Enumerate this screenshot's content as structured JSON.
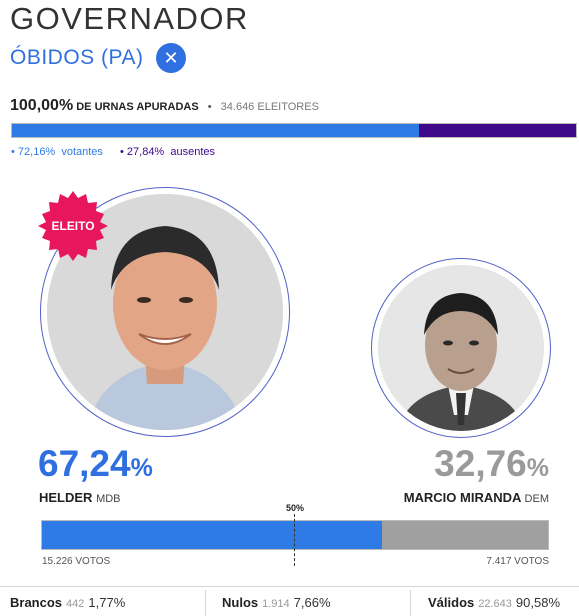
{
  "header": {
    "title": "GOVERNADOR",
    "region": "ÓBIDOS (PA)",
    "close_icon": "close-icon",
    "close_glyph": "✕"
  },
  "apuracao": {
    "percent": "100,00%",
    "label": "de urnas apuradas",
    "bullet": "•",
    "electors": "34.646",
    "electors_label": "eleitores"
  },
  "turnout": {
    "votantes_fraction": 0.7216,
    "votantes_text": "• 72,16%",
    "votantes_label": "votantes",
    "ausentes_text": "• 27,84%",
    "ausentes_label": "ausentes",
    "colors": {
      "votantes": "#2f7be6",
      "ausentes": "#3e0a8a"
    }
  },
  "candidates": [
    {
      "name": "HELDER",
      "party": "MDB",
      "percent_number": "67,24",
      "percent_symbol": "%",
      "votes": "15.226 votos",
      "elected": true,
      "elected_label": "ELEITO",
      "color": "#2f7be6"
    },
    {
      "name": "MARCIO MIRANDA",
      "party": "DEM",
      "percent_number": "32,76",
      "percent_symbol": "%",
      "votes": "7.417 votos",
      "elected": false,
      "color": "#a0a0a0"
    }
  ],
  "vote_bar": {
    "fraction_1": 0.6724,
    "half_label": "50%"
  },
  "footer": {
    "brancos": {
      "label": "Brancos",
      "count": "442",
      "percent": "1,77%"
    },
    "nulos": {
      "label": "Nulos",
      "count": "1.914",
      "percent": "7,66%"
    },
    "validos": {
      "label": "Válidos",
      "count": "22.643",
      "percent": "90,58%"
    }
  }
}
